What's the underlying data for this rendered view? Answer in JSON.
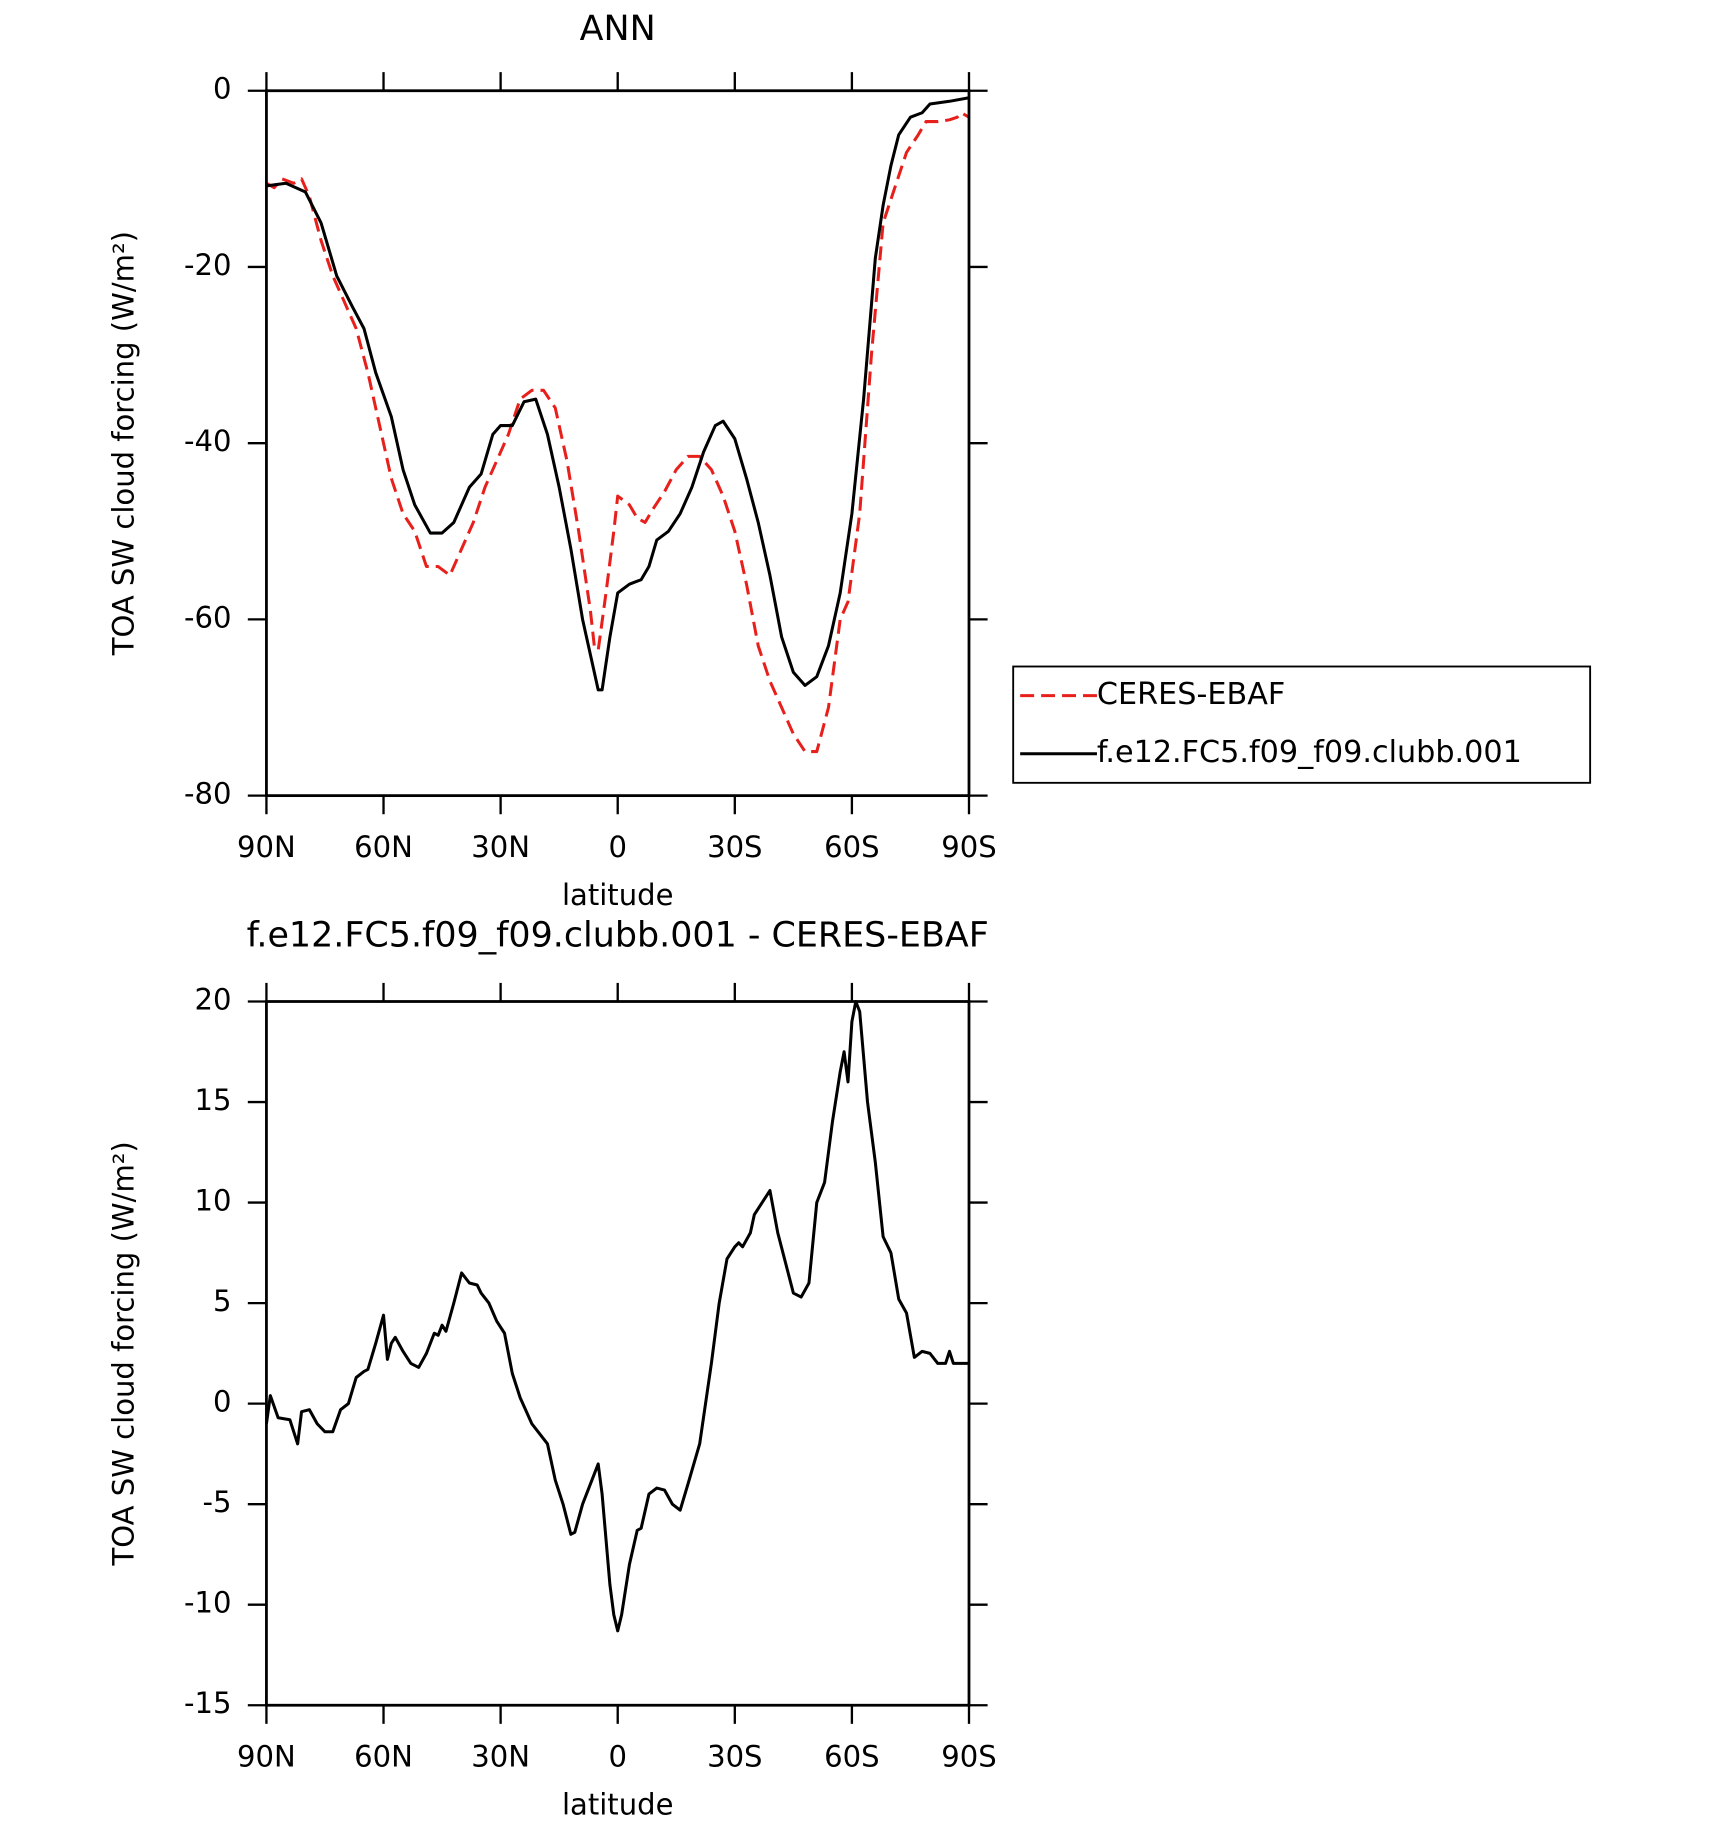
{
  "chart_data": [
    {
      "type": "line",
      "title": "ANN",
      "xlabel": "latitude",
      "ylabel": "TOA SW cloud forcing (W/m²)",
      "xlim": [
        90,
        -90
      ],
      "ylim": [
        -80,
        0
      ],
      "xticks": [
        {
          "value": 90,
          "label": "90N"
        },
        {
          "value": 60,
          "label": "60N"
        },
        {
          "value": 30,
          "label": "30N"
        },
        0,
        {
          "value": -30,
          "label": "30S"
        },
        {
          "value": -60,
          "label": "60S"
        },
        {
          "value": -90,
          "label": "90S"
        }
      ],
      "yticks": [
        -80,
        -60,
        -40,
        -20,
        0
      ],
      "legend": "right",
      "series": [
        {
          "name": "CERES-EBAF",
          "color": "#e8201c",
          "line_style": "dashed",
          "x": [
            90,
            88,
            86,
            83,
            81,
            79,
            76,
            73,
            70,
            67,
            64,
            61,
            58,
            55,
            52,
            49,
            46,
            43,
            40,
            37,
            34,
            31,
            28,
            25,
            22,
            19,
            16,
            13,
            10,
            7,
            6,
            5,
            3,
            1,
            0,
            -3,
            -5,
            -7,
            -9,
            -12,
            -15,
            -18,
            -21,
            -24,
            -27,
            -30,
            -33,
            -36,
            -39,
            -42,
            -45,
            -48,
            -51,
            -54,
            -57,
            -59,
            -62,
            -65,
            -68,
            -71,
            -74,
            -77,
            -79,
            -82,
            -85,
            -87,
            -88,
            -90
          ],
          "values": [
            -10.5,
            -11,
            -10,
            -10.5,
            -10,
            -12,
            -17,
            -21,
            -24,
            -27,
            -32,
            -38,
            -44,
            -48,
            -50,
            -54,
            -54,
            -55,
            -52,
            -49,
            -45,
            -42,
            -39,
            -35,
            -34,
            -34,
            -36,
            -42,
            -50,
            -59,
            -63,
            -63.5,
            -57,
            -50,
            -46,
            -47,
            -48.5,
            -49,
            -47.5,
            -45.5,
            -43,
            -41.5,
            -41.5,
            -43,
            -46,
            -50,
            -56,
            -63,
            -67,
            -70,
            -73,
            -75,
            -75,
            -70,
            -60,
            -58,
            -48,
            -30,
            -15,
            -11,
            -7,
            -5,
            -3.5,
            -3.5,
            -3.3,
            -3,
            -2.5,
            -3
          ]
        },
        {
          "name": "f.e12.FC5.f09_f09.clubb.001",
          "color": "#000000",
          "line_style": "solid",
          "x": [
            90,
            85,
            80,
            76,
            72,
            68,
            65,
            62,
            58,
            55,
            52,
            48,
            45,
            42,
            38,
            35,
            32,
            30,
            27,
            24,
            21,
            18,
            15,
            12,
            9,
            6,
            5,
            4,
            2,
            0,
            -3,
            -6,
            -8,
            -10,
            -13,
            -16,
            -19,
            -22,
            -25,
            -27,
            -30,
            -33,
            -36,
            -39,
            -42,
            -45,
            -48,
            -51,
            -54,
            -57,
            -60,
            -63,
            -66,
            -68,
            -70,
            -72,
            -75,
            -78,
            -80,
            -85,
            -90
          ],
          "values": [
            -10.8,
            -10.5,
            -11.5,
            -15,
            -21,
            -24.5,
            -27,
            -32,
            -37,
            -43,
            -47,
            -50.2,
            -50.2,
            -49,
            -45,
            -43.5,
            -39,
            -38,
            -38,
            -35.3,
            -35,
            -39,
            -45,
            -52,
            -60,
            -66,
            -68,
            -68,
            -62,
            -57,
            -56,
            -55.5,
            -54,
            -51,
            -50,
            -48,
            -45,
            -41,
            -38,
            -37.5,
            -39.5,
            -44,
            -49,
            -55,
            -62,
            -66,
            -67.5,
            -66.5,
            -63,
            -57,
            -48,
            -35,
            -19,
            -13,
            -8.5,
            -5,
            -3,
            -2.5,
            -1.5,
            -1.2,
            -0.8
          ]
        }
      ]
    },
    {
      "type": "line",
      "title": "f.e12.FC5.f09_f09.clubb.001 - CERES-EBAF",
      "xlabel": "latitude",
      "ylabel": "TOA SW cloud forcing (W/m²)",
      "xlim": [
        90,
        -90
      ],
      "ylim": [
        -15,
        20
      ],
      "xticks": [
        {
          "value": 90,
          "label": "90N"
        },
        {
          "value": 60,
          "label": "60N"
        },
        {
          "value": 30,
          "label": "30N"
        },
        0,
        {
          "value": -30,
          "label": "30S"
        },
        {
          "value": -60,
          "label": "60S"
        },
        {
          "value": -90,
          "label": "90S"
        }
      ],
      "yticks": [
        -15,
        -10,
        -5,
        0,
        5,
        10,
        15,
        20
      ],
      "x": [
        90,
        89,
        87,
        84,
        82,
        81,
        79,
        77,
        75,
        73,
        71,
        69,
        67,
        65,
        64,
        62,
        60,
        59,
        58,
        57,
        55,
        53,
        51,
        49,
        47,
        46,
        45,
        44,
        42,
        40,
        38,
        36,
        35,
        33,
        31,
        29,
        27,
        25,
        22,
        20,
        18,
        16,
        14,
        12,
        11,
        9,
        7,
        5,
        4,
        2,
        1,
        0,
        -1,
        -3,
        -5,
        -6,
        -8,
        -10,
        -12,
        -14,
        -16,
        -18,
        -21,
        -24,
        -26,
        -28,
        -30,
        -31,
        -32,
        -34,
        -35,
        -37,
        -39,
        -41,
        -43,
        -45,
        -47,
        -49,
        -51,
        -53,
        -55,
        -57,
        -58,
        -59,
        -60,
        -61,
        -62,
        -64,
        -66,
        -68,
        -70,
        -72,
        -74,
        -76,
        -78,
        -80,
        -82,
        -84,
        -85,
        -86,
        -88,
        -90
      ],
      "series": [
        {
          "color": "#000000",
          "line_style": "solid",
          "values": [
            -1,
            0.4,
            -0.7,
            -0.8,
            -2,
            -0.4,
            -0.3,
            -1,
            -1.4,
            -1.4,
            -0.3,
            0,
            1.3,
            1.6,
            1.7,
            3,
            4.4,
            2.2,
            3,
            3.3,
            2.6,
            2,
            1.8,
            2.5,
            3.5,
            3.4,
            3.9,
            3.6,
            5,
            6.5,
            6,
            5.9,
            5.5,
            5,
            4.1,
            3.5,
            1.5,
            0.3,
            -1,
            -1.5,
            -2,
            -3.8,
            -5,
            -6.5,
            -6.4,
            -5,
            -4,
            -3,
            -4.5,
            -9,
            -10.5,
            -11.3,
            -10.5,
            -8,
            -6.3,
            -6.2,
            -4.5,
            -4.2,
            -4.3,
            -5,
            -5.3,
            -4,
            -2,
            2,
            5,
            7.2,
            7.8,
            8,
            7.8,
            8.5,
            9.4,
            10,
            10.6,
            8.5,
            7,
            5.5,
            5.3,
            6,
            10,
            11,
            14,
            16.5,
            17.5,
            16,
            19,
            20,
            19.5,
            15,
            12,
            8.3,
            7.5,
            5.2,
            4.5,
            2.3,
            2.6,
            2.5,
            2,
            2,
            2.6,
            2,
            2,
            2
          ]
        }
      ]
    }
  ]
}
